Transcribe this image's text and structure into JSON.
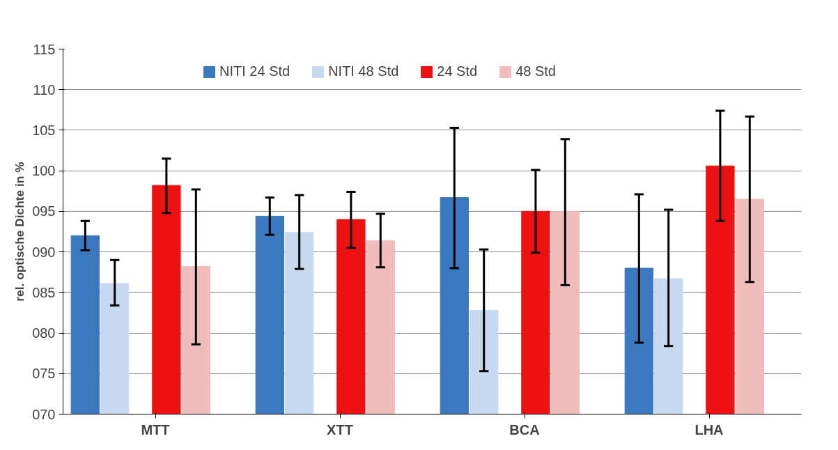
{
  "chart_data": {
    "type": "bar",
    "ylabel": "rel. optische Dichte in %",
    "categories": [
      "MTT",
      "XTT",
      "BCA",
      "LHA"
    ],
    "series": [
      {
        "name": "NITI 24 Std",
        "color": "#3a78c0",
        "values": [
          92.0,
          94.4,
          96.7,
          88.0
        ],
        "errors": [
          [
            90.2,
            93.8
          ],
          [
            92.1,
            96.7
          ],
          [
            88.0,
            105.3
          ],
          [
            78.8,
            97.1
          ]
        ]
      },
      {
        "name": "NITI 48 Std",
        "color": "#c6d9f1",
        "values": [
          86.1,
          92.4,
          82.8,
          86.7
        ],
        "errors": [
          [
            83.4,
            89.0
          ],
          [
            87.9,
            97.0
          ],
          [
            75.3,
            90.3
          ],
          [
            78.4,
            95.2
          ]
        ]
      },
      {
        "name": "24 Std",
        "color": "#ee1111",
        "values": [
          98.2,
          94.0,
          95.0,
          100.6
        ],
        "errors": [
          [
            94.8,
            101.5
          ],
          [
            90.5,
            97.4
          ],
          [
            89.9,
            100.1
          ],
          [
            93.8,
            107.4
          ]
        ]
      },
      {
        "name": "48 Std",
        "color": "#f0bcbc",
        "values": [
          88.2,
          91.4,
          95.0,
          96.5
        ],
        "errors": [
          [
            78.6,
            97.7
          ],
          [
            88.1,
            94.7
          ],
          [
            85.9,
            103.9
          ],
          [
            86.3,
            106.7
          ]
        ]
      }
    ],
    "ylim": [
      70,
      115
    ],
    "yticks": [
      {
        "value": 70,
        "label": "070"
      },
      {
        "value": 75,
        "label": "075"
      },
      {
        "value": 80,
        "label": "080"
      },
      {
        "value": 85,
        "label": "085"
      },
      {
        "value": 90,
        "label": "090"
      },
      {
        "value": 95,
        "label": "095"
      },
      100,
      105,
      110,
      115
    ],
    "grid": "y",
    "legend": "top"
  }
}
